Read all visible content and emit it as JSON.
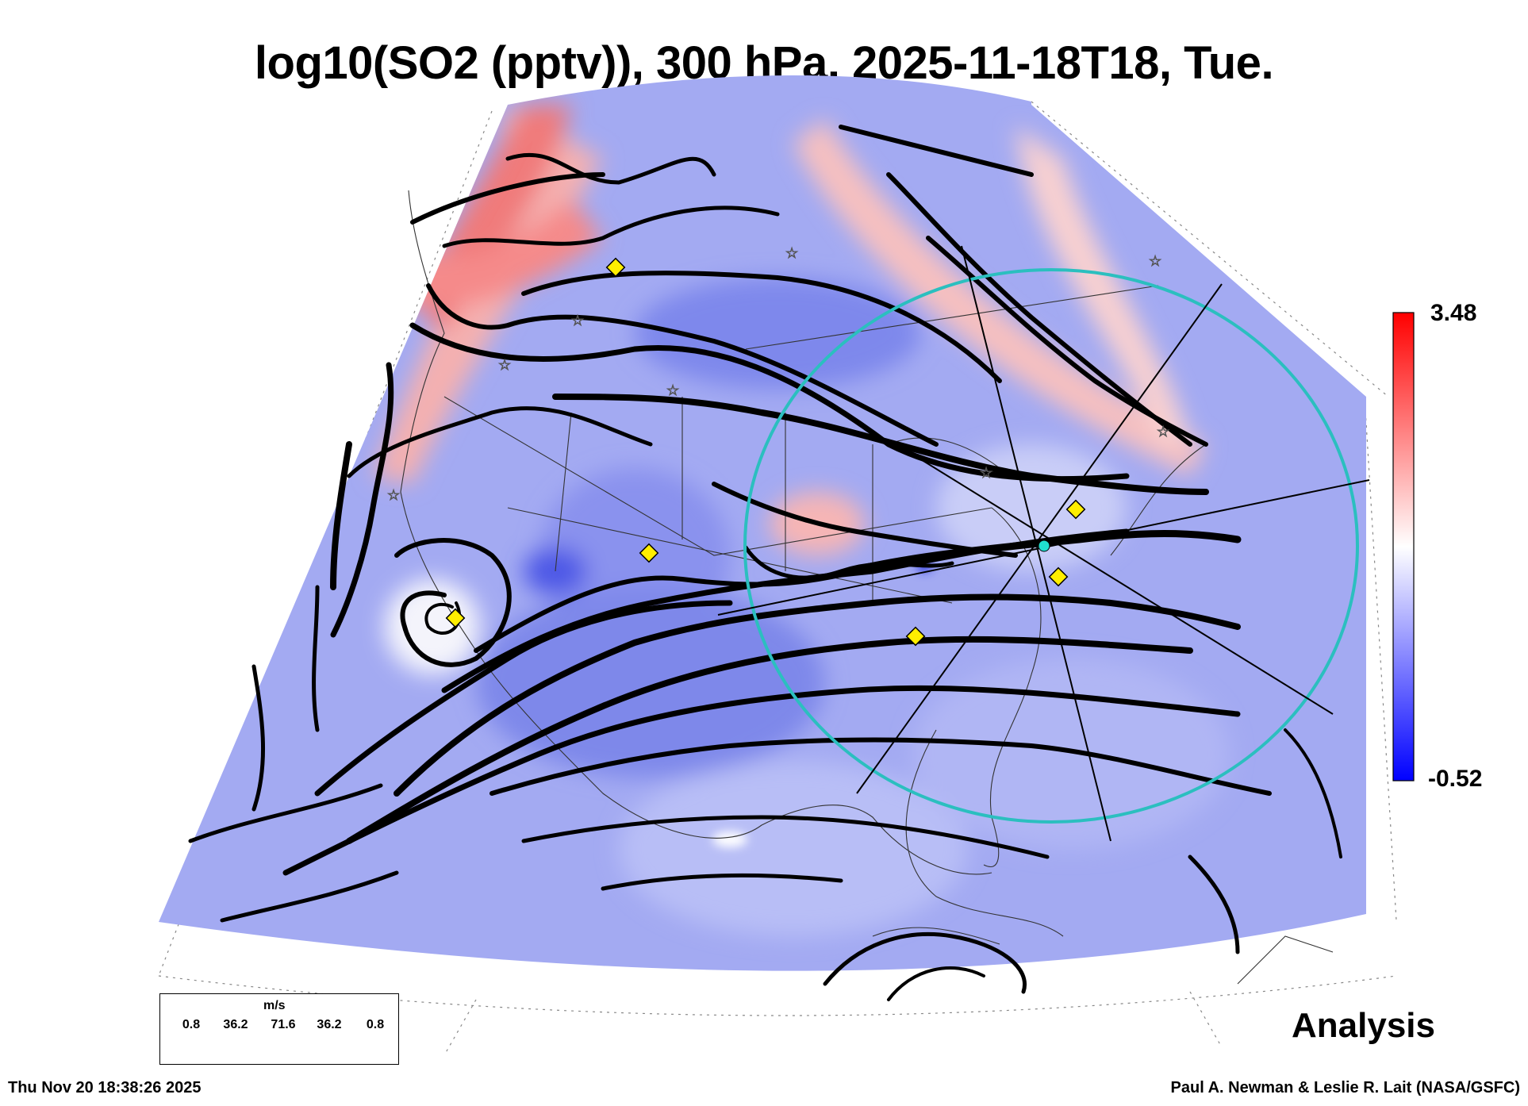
{
  "title": "log10(SO2 (pptv)), 300 hPa, 2025-11-18T18, Tue.",
  "colorbar": {
    "max": "3.48",
    "min": "-0.52",
    "low_color": "#0000ff",
    "mid_color": "#ffffff",
    "high_color": "#ff0000"
  },
  "legend": {
    "unit": "m/s",
    "values": [
      "0.8",
      "36.2",
      "71.6",
      "36.2",
      "0.8"
    ]
  },
  "analysis_label": "Analysis",
  "timestamp": "Thu Nov 20 18:38:26 2025",
  "credit": "Paul A. Newman & Leslie R. Lait (NASA/GSFC)",
  "colors": {
    "ring": "#2bbfbf",
    "marker": "#ffee00",
    "streamline": "#000000",
    "field": "#9aa4f4"
  }
}
